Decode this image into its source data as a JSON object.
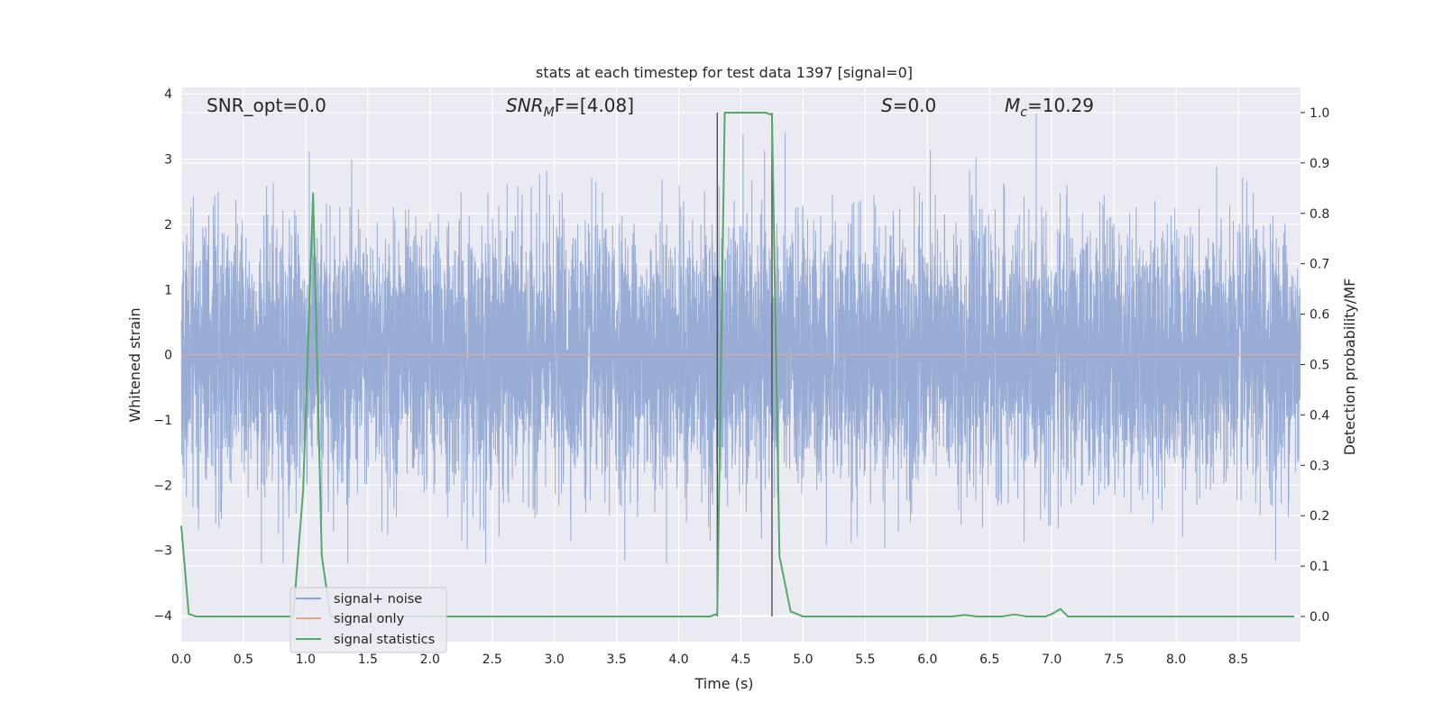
{
  "chart_data": {
    "type": "line",
    "title": "stats at each timestep for test data 1397 [signal=0]",
    "xlabel": "Time (s)",
    "ylabel_left": "Whitened strain",
    "ylabel_right": "Detection probability/MF",
    "xlim": [
      0.0,
      9.0
    ],
    "ylim_left": [
      -4.4,
      4.1
    ],
    "ylim_right": [
      -0.05,
      1.05
    ],
    "xticks": [
      "0.0",
      "0.5",
      "1.0",
      "1.5",
      "2.0",
      "2.5",
      "3.0",
      "3.5",
      "4.0",
      "4.5",
      "5.0",
      "5.5",
      "6.0",
      "6.5",
      "7.0",
      "7.5",
      "8.0",
      "8.5"
    ],
    "yticks_left": [
      "4",
      "3",
      "2",
      "1",
      "0",
      "−1",
      "−2",
      "−3",
      "−4"
    ],
    "yticks_right": [
      "1.0",
      "0.9",
      "0.8",
      "0.7",
      "0.6",
      "0.5",
      "0.4",
      "0.3",
      "0.2",
      "0.1",
      "0.0"
    ],
    "grid": true,
    "legend_position": "lower-left",
    "annotations": {
      "snr_opt": "SNR_opt=0.0",
      "snr_mf_main": "SNR",
      "snr_mf_sub": "M",
      "snr_mf_rest": "F=[4.08]",
      "s_italic": "S",
      "s_rest": "=0.0",
      "mc_italic": "M",
      "mc_sub": "c",
      "mc_rest": "=10.29"
    },
    "vertical_lines": [
      4.31,
      4.75
    ],
    "series": [
      {
        "name": "signal+ noise",
        "color": "#8fa5d1",
        "axis": "left",
        "description": "whitened strain noise, approx. Gaussian with std 1",
        "typical_range": [
          -3.2,
          3.7
        ]
      },
      {
        "name": "signal only",
        "color": "#e9a58b",
        "axis": "left",
        "x": [
          0.0,
          9.0
        ],
        "values": [
          0.0,
          0.0
        ]
      },
      {
        "name": "signal statistics",
        "color": "#55a868",
        "axis": "right",
        "x": [
          0.0,
          0.06,
          0.12,
          0.2,
          0.9,
          0.98,
          1.06,
          1.13,
          1.2,
          1.3,
          4.25,
          4.31,
          4.37,
          4.45,
          4.7,
          4.75,
          4.81,
          4.9,
          5.0,
          6.2,
          6.3,
          6.4,
          6.6,
          6.7,
          6.8,
          6.95,
          7.0,
          7.07,
          7.13,
          7.2,
          8.95
        ],
        "values": [
          0.18,
          0.005,
          0.0,
          0.0,
          0.0,
          0.25,
          0.84,
          0.12,
          0.0,
          0.0,
          0.0,
          0.005,
          1.0,
          1.0,
          1.0,
          0.995,
          0.12,
          0.01,
          0.0,
          0.0,
          0.003,
          0.0,
          0.0,
          0.004,
          0.0,
          0.0,
          0.005,
          0.015,
          0.0,
          0.0,
          0.0
        ]
      }
    ]
  }
}
